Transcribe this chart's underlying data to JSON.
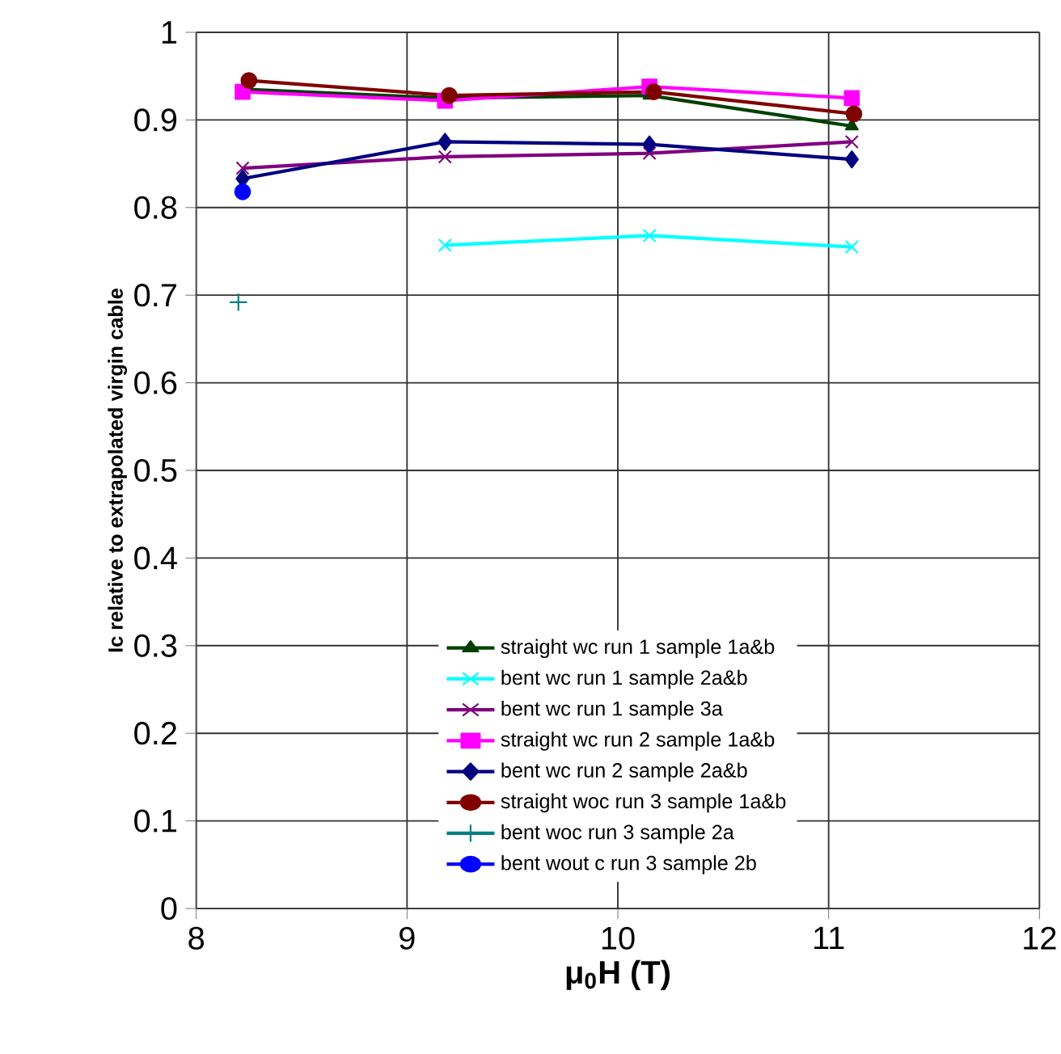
{
  "chart_data": {
    "type": "line",
    "xlabel": "**μ$_{0}$H (T)**",
    "ylabel": "Ic relative to extrapolated virgin cable",
    "xlim": [
      8,
      12
    ],
    "xticks": [
      8,
      9,
      10,
      11,
      12
    ],
    "ylim": [
      0,
      1
    ],
    "yticks": [
      0,
      0.1,
      0.2,
      0.3,
      0.4,
      0.5,
      0.6,
      0.7,
      0.8,
      0.9,
      1
    ],
    "grid": true,
    "legend": "bottom",
    "series": [
      {
        "name": "straight wc run 1 sample 1a&b",
        "color": "#004000",
        "marker": "triangle",
        "x": [
          8.22,
          9.18,
          10.15,
          11.11
        ],
        "values": [
          0.935,
          0.925,
          0.928,
          0.893
        ]
      },
      {
        "name": "bent wc run 1 sample 2a&b",
        "color": "#00ffff",
        "marker": "cross",
        "x": [
          9.18,
          10.15,
          11.11
        ],
        "values": [
          0.757,
          0.768,
          0.755
        ]
      },
      {
        "name": "bent wc run 1 sample 3a",
        "color": "#800080",
        "marker": "cross",
        "x": [
          8.22,
          9.18,
          10.15,
          11.11
        ],
        "values": [
          0.845,
          0.858,
          0.862,
          0.875
        ]
      },
      {
        "name": "straight wc run 2 sample 1a&b",
        "color": "#ff00ff",
        "marker": "square",
        "x": [
          8.22,
          9.18,
          10.15,
          11.11
        ],
        "values": [
          0.932,
          0.922,
          0.938,
          0.925
        ]
      },
      {
        "name": "bent wc run 2 sample 2a&b",
        "color": "#000080",
        "marker": "diamond",
        "x": [
          8.22,
          9.18,
          10.15,
          11.11
        ],
        "values": [
          0.833,
          0.875,
          0.872,
          0.855
        ]
      },
      {
        "name": "straight woc run 3 sample 1a&b",
        "color": "#800000",
        "marker": "circle",
        "x": [
          8.25,
          9.2,
          10.17,
          11.12
        ],
        "values": [
          0.945,
          0.928,
          0.932,
          0.907
        ]
      },
      {
        "name": "bent woc run 3 sample 2a",
        "color": "#008080",
        "marker": "plus",
        "x": [
          8.2
        ],
        "values": [
          0.692
        ]
      },
      {
        "name": "bent wout c run 3 sample 2b",
        "color": "#0000ff",
        "marker": "circle",
        "x": [
          8.22
        ],
        "values": [
          0.818
        ]
      }
    ]
  }
}
